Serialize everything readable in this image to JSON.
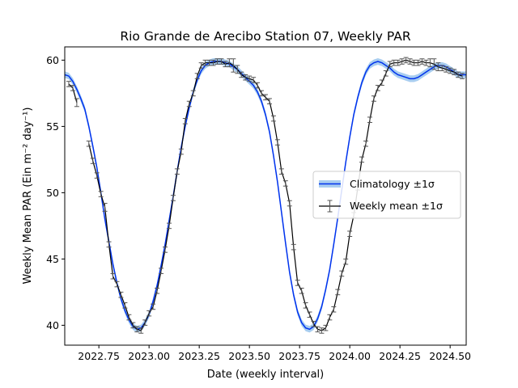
{
  "chart_data": {
    "type": "line",
    "title": "Rio Grande de Arecibo Station 07, Weekly PAR",
    "xlabel": "Date (weekly interval)",
    "ylabel": "Weekly Mean PAR (Ein m⁻² day⁻¹)",
    "xlim": [
      2022.58,
      2024.58
    ],
    "ylim": [
      38.5,
      61.0
    ],
    "x_ticks": [
      2022.75,
      2023.0,
      2023.25,
      2023.5,
      2023.75,
      2024.0,
      2024.25,
      2024.5
    ],
    "x_tick_labels": [
      "2022.75",
      "2023.00",
      "2023.25",
      "2023.50",
      "2023.75",
      "2024.00",
      "2024.25",
      "2024.50"
    ],
    "y_ticks": [
      40,
      45,
      50,
      55,
      60
    ],
    "y_tick_labels": [
      "40",
      "45",
      "50",
      "55",
      "60"
    ],
    "grid": false,
    "legend_position": "center-right",
    "colors": {
      "climatology": "#0033ee",
      "climatology_band": "#a8cdf0",
      "weekly_mean": "#000000",
      "error_bar": "#555555"
    },
    "series": [
      {
        "name": "Climatology ±1σ",
        "x": [
          2022.58,
          2022.6,
          2022.62,
          2022.64,
          2022.66,
          2022.68,
          2022.7,
          2022.72,
          2022.74,
          2022.76,
          2022.78,
          2022.8,
          2022.82,
          2022.84,
          2022.86,
          2022.88,
          2022.9,
          2022.92,
          2022.94,
          2022.96,
          2022.98,
          2023.0,
          2023.02,
          2023.04,
          2023.06,
          2023.08,
          2023.1,
          2023.12,
          2023.14,
          2023.16,
          2023.18,
          2023.2,
          2023.22,
          2023.24,
          2023.26,
          2023.28,
          2023.3,
          2023.32,
          2023.34,
          2023.36,
          2023.38,
          2023.4,
          2023.42,
          2023.44,
          2023.46,
          2023.48,
          2023.5,
          2023.52,
          2023.54,
          2023.56,
          2023.58,
          2023.6,
          2023.62,
          2023.64,
          2023.66,
          2023.68,
          2023.7,
          2023.72,
          2023.74,
          2023.76,
          2023.78,
          2023.8,
          2023.82,
          2023.84,
          2023.86,
          2023.88,
          2023.9,
          2023.92,
          2023.94,
          2023.96,
          2023.98,
          2024.0,
          2024.02,
          2024.04,
          2024.06,
          2024.08,
          2024.1,
          2024.12,
          2024.14,
          2024.16,
          2024.18,
          2024.2,
          2024.22,
          2024.24,
          2024.26,
          2024.28,
          2024.3,
          2024.32,
          2024.34,
          2024.36,
          2024.38,
          2024.4,
          2024.42,
          2024.44,
          2024.46,
          2024.48,
          2024.5,
          2024.52,
          2024.54,
          2024.56,
          2024.58
        ],
        "y": [
          58.9,
          58.8,
          58.4,
          57.8,
          57.1,
          56.3,
          55.0,
          53.5,
          51.9,
          50.0,
          48.0,
          46.3,
          44.6,
          43.2,
          42.0,
          41.1,
          40.4,
          39.9,
          39.7,
          39.8,
          40.2,
          40.8,
          41.8,
          43.0,
          44.5,
          46.1,
          47.9,
          49.7,
          51.6,
          53.4,
          55.0,
          56.4,
          57.6,
          58.5,
          59.2,
          59.6,
          59.8,
          59.9,
          59.9,
          59.9,
          59.8,
          59.7,
          59.5,
          59.3,
          59.0,
          58.7,
          58.4,
          58.1,
          57.6,
          56.9,
          55.9,
          54.6,
          52.8,
          50.8,
          48.5,
          46.2,
          44.0,
          42.3,
          41.0,
          40.2,
          39.8,
          39.7,
          39.9,
          40.5,
          41.4,
          42.7,
          44.2,
          46.1,
          48.1,
          50.2,
          52.3,
          54.2,
          55.9,
          57.2,
          58.3,
          59.1,
          59.6,
          59.8,
          59.9,
          59.8,
          59.6,
          59.4,
          59.1,
          58.9,
          58.8,
          58.7,
          58.6,
          58.6,
          58.7,
          58.9,
          59.1,
          59.3,
          59.5,
          59.6,
          59.6,
          59.5,
          59.3,
          59.1,
          58.9,
          58.9,
          58.9
        ],
        "sigma": 0.25
      },
      {
        "name": "Weekly mean ±1σ",
        "x": [
          2022.6,
          2022.62,
          2022.64,
          2022.7,
          2022.72,
          2022.74,
          2022.76,
          2022.78,
          2022.8,
          2022.82,
          2022.84,
          2022.86,
          2022.88,
          2022.9,
          2022.92,
          2022.94,
          2022.96,
          2022.98,
          2023.0,
          2023.02,
          2023.04,
          2023.06,
          2023.08,
          2023.1,
          2023.12,
          2023.14,
          2023.16,
          2023.18,
          2023.2,
          2023.22,
          2023.24,
          2023.26,
          2023.28,
          2023.3,
          2023.32,
          2023.34,
          2023.36,
          2023.38,
          2023.4,
          2023.42,
          2023.44,
          2023.46,
          2023.48,
          2023.5,
          2023.52,
          2023.54,
          2023.56,
          2023.58,
          2023.6,
          2023.62,
          2023.64,
          2023.66,
          2023.68,
          2023.7,
          2023.72,
          2023.74,
          2023.76,
          2023.78,
          2023.8,
          2023.82,
          2023.84,
          2023.86,
          2023.88,
          2023.9,
          2023.92,
          2023.94,
          2023.96,
          2023.98,
          2024.0,
          2024.02,
          2024.04,
          2024.06,
          2024.08,
          2024.1,
          2024.12,
          2024.14,
          2024.16,
          2024.18,
          2024.2,
          2024.22,
          2024.24,
          2024.26,
          2024.28,
          2024.3,
          2024.32,
          2024.34,
          2024.36,
          2024.38,
          2024.4,
          2024.42,
          2024.44,
          2024.46,
          2024.48,
          2024.5,
          2024.52,
          2024.54,
          2024.56
        ],
        "y": [
          58.2,
          57.9,
          56.8,
          53.7,
          52.4,
          51.3,
          49.9,
          48.9,
          46.1,
          43.7,
          43.1,
          42.3,
          41.5,
          40.6,
          40.0,
          39.7,
          39.6,
          40.2,
          40.9,
          41.4,
          42.6,
          44.1,
          45.7,
          47.5,
          49.6,
          51.6,
          53.1,
          55.4,
          56.7,
          57.5,
          58.8,
          59.6,
          59.8,
          59.8,
          59.8,
          59.9,
          59.9,
          59.7,
          59.8,
          59.6,
          59.3,
          58.9,
          58.7,
          58.6,
          58.5,
          58.1,
          57.5,
          57.2,
          56.9,
          55.6,
          53.8,
          51.6,
          50.7,
          49.2,
          45.9,
          43.2,
          42.6,
          41.5,
          40.8,
          40.1,
          39.7,
          39.6,
          39.8,
          40.6,
          41.2,
          42.5,
          43.9,
          44.8,
          46.9,
          48.3,
          50.4,
          52.5,
          53.7,
          55.5,
          57.1,
          57.9,
          58.3,
          59.0,
          59.7,
          59.8,
          59.8,
          59.9,
          60.0,
          59.9,
          59.8,
          59.8,
          59.9,
          59.8,
          59.8,
          59.7,
          59.5,
          59.4,
          59.3,
          59.2,
          59.1,
          58.9,
          58.8
        ],
        "sigma": [
          0.2,
          0.2,
          0.3,
          0.2,
          0.2,
          0.2,
          0.2,
          0.3,
          0.2,
          0.2,
          0.2,
          0.2,
          0.2,
          0.2,
          0.2,
          0.2,
          0.2,
          0.2,
          0.2,
          0.2,
          0.2,
          0.2,
          0.2,
          0.2,
          0.2,
          0.2,
          0.2,
          0.2,
          0.2,
          0.2,
          0.2,
          0.2,
          0.2,
          0.2,
          0.2,
          0.2,
          0.2,
          0.2,
          0.3,
          0.5,
          0.3,
          0.2,
          0.2,
          0.2,
          0.2,
          0.2,
          0.2,
          0.2,
          0.2,
          0.2,
          0.2,
          0.2,
          0.2,
          0.2,
          0.2,
          0.2,
          0.2,
          0.2,
          0.2,
          0.2,
          0.2,
          0.2,
          0.2,
          0.2,
          0.2,
          0.2,
          0.2,
          0.2,
          0.2,
          0.2,
          0.2,
          0.2,
          0.2,
          0.2,
          0.2,
          0.2,
          0.2,
          0.2,
          0.2,
          0.2,
          0.2,
          0.2,
          0.2,
          0.2,
          0.2,
          0.2,
          0.2,
          0.2,
          0.3,
          0.4,
          0.3,
          0.2,
          0.2,
          0.2,
          0.2,
          0.2,
          0.2
        ]
      }
    ]
  }
}
